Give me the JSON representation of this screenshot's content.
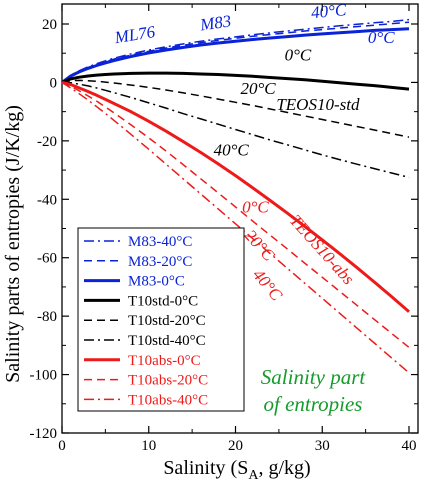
{
  "chart_data": {
    "type": "line",
    "title": "",
    "xlabel_main": "Salinity (S",
    "xlabel_sub": "A",
    "xlabel_tail": ", g/kg)",
    "ylabel": "Salinity parts of entropies (J/K/kg)",
    "xlim": [
      0,
      40
    ],
    "ylim": [
      -120,
      25
    ],
    "xticks": [
      0,
      10,
      20,
      30,
      40
    ],
    "yticks": [
      -120,
      -100,
      -80,
      -60,
      -40,
      -20,
      0,
      20
    ],
    "grid": false,
    "legend_position": "bottom-left",
    "colors": {
      "blue": "#0a22d8",
      "black": "#000000",
      "red": "#ee1a1a",
      "green": "#169a2c"
    },
    "x": [
      0,
      1,
      2,
      3,
      4,
      5,
      6,
      8,
      10,
      12,
      14,
      16,
      18,
      20,
      22,
      24,
      26,
      28,
      30,
      32,
      34,
      36,
      38,
      40
    ],
    "series": [
      {
        "name": "M83-40°C",
        "color": "#0a22d8",
        "dash": "dashdot",
        "width": 1.5,
        "values": [
          0,
          2.5,
          4,
          5.3,
          6.4,
          7.4,
          8.3,
          9.8,
          11.1,
          12.2,
          13.2,
          14.1,
          14.9,
          15.6,
          16.3,
          17,
          17.6,
          18.2,
          18.8,
          19.4,
          19.9,
          20.4,
          20.9,
          21.5
        ]
      },
      {
        "name": "M83-20°C",
        "color": "#0a22d8",
        "dash": "dashed",
        "width": 1.5,
        "values": [
          0,
          2.4,
          3.9,
          5.1,
          6.2,
          7.1,
          8,
          9.4,
          10.7,
          11.8,
          12.7,
          13.6,
          14.4,
          15.1,
          15.8,
          16.4,
          17,
          17.6,
          18.1,
          18.6,
          19.1,
          19.6,
          20.1,
          20.6
        ]
      },
      {
        "name": "M83-0°C",
        "color": "#0a22d8",
        "dash": "solid",
        "width": 3,
        "values": [
          0,
          2.2,
          3.6,
          4.8,
          5.8,
          6.7,
          7.5,
          8.9,
          10.1,
          11.1,
          12,
          12.8,
          13.5,
          14.1,
          14.7,
          15.2,
          15.7,
          16.2,
          16.6,
          17,
          17.4,
          17.8,
          18.1,
          18.4
        ]
      },
      {
        "name": "T10std-0°C",
        "color": "#000000",
        "dash": "solid",
        "width": 3,
        "values": [
          0,
          1.2,
          1.8,
          2.2,
          2.5,
          2.7,
          2.9,
          3.1,
          3.2,
          3.2,
          3.1,
          2.9,
          2.7,
          2.4,
          2.1,
          1.7,
          1.3,
          0.9,
          0.4,
          -0.1,
          -0.6,
          -1.1,
          -1.7,
          -2.3
        ]
      },
      {
        "name": "T10std-20°C",
        "color": "#000000",
        "dash": "dashed",
        "width": 1.5,
        "values": [
          0,
          0.6,
          0.7,
          0.6,
          0.4,
          0.1,
          -0.2,
          -0.9,
          -1.7,
          -2.6,
          -3.6,
          -4.6,
          -5.7,
          -6.8,
          -7.9,
          -9.1,
          -10.3,
          -11.5,
          -12.7,
          -13.9,
          -15.1,
          -16.3,
          -17.5,
          -18.7
        ]
      },
      {
        "name": "T10std-40°C",
        "color": "#000000",
        "dash": "dashdot",
        "width": 1.5,
        "values": [
          0,
          -0.1,
          -0.6,
          -1.2,
          -1.9,
          -2.7,
          -3.5,
          -5.2,
          -7,
          -8.8,
          -10.7,
          -12.5,
          -14.3,
          -16.1,
          -17.9,
          -19.7,
          -21.4,
          -23.1,
          -24.8,
          -26.4,
          -28,
          -29.5,
          -31,
          -32.5
        ]
      },
      {
        "name": "T10abs-0°C",
        "color": "#ee1a1a",
        "dash": "solid",
        "width": 3,
        "values": [
          0,
          -0.7,
          -1.9,
          -3.1,
          -4.4,
          -5.8,
          -7.2,
          -10.1,
          -13.3,
          -16.7,
          -20.3,
          -24,
          -27.9,
          -31.9,
          -36.1,
          -40.4,
          -44.8,
          -49.3,
          -53.9,
          -58.6,
          -63.4,
          -68.3,
          -73.3,
          -78.5
        ]
      },
      {
        "name": "T10abs-20°C",
        "color": "#ee1a1a",
        "dash": "dashed",
        "width": 1.5,
        "values": [
          0,
          -1.3,
          -2.9,
          -4.6,
          -6.4,
          -8.4,
          -10.4,
          -14.6,
          -19,
          -23.5,
          -28.2,
          -33,
          -37.8,
          -42.6,
          -47.5,
          -52.3,
          -57.1,
          -61.9,
          -66.7,
          -71.5,
          -76.3,
          -81.1,
          -85.9,
          -90.7
        ]
      },
      {
        "name": "T10abs-40°C",
        "color": "#ee1a1a",
        "dash": "dashdot",
        "width": 1.5,
        "values": [
          0,
          -1.9,
          -3.9,
          -6,
          -8.3,
          -10.6,
          -13,
          -17.9,
          -22.9,
          -28,
          -33.1,
          -38.2,
          -43.3,
          -48.4,
          -53.5,
          -58.6,
          -63.7,
          -68.8,
          -73.9,
          -79,
          -84.1,
          -89.2,
          -94.3,
          -99.4
        ]
      }
    ],
    "annotations": [
      {
        "text": "ML76",
        "x": 8.5,
        "y": 14.5,
        "angle": -9,
        "color": "#0a22d8"
      },
      {
        "text": "M83",
        "x": 17.8,
        "y": 18.5,
        "angle": -8,
        "color": "#0a22d8"
      },
      {
        "text": "40°C",
        "x": 30.8,
        "y": 22.5,
        "angle": -5,
        "color": "#0a22d8"
      },
      {
        "text": "0°C",
        "x": 36.8,
        "y": 13.5,
        "angle": 0,
        "color": "#0a22d8"
      },
      {
        "text": "0°C",
        "x": 27.2,
        "y": 7.5,
        "angle": 0,
        "color": "#000000"
      },
      {
        "text": "20°C",
        "x": 22.6,
        "y": -4,
        "angle": 0,
        "color": "#000000"
      },
      {
        "text": "TEOS10-std",
        "x": 29.5,
        "y": -9.5,
        "angle": 0,
        "color": "#000000"
      },
      {
        "text": "40°C",
        "x": 19.5,
        "y": -25,
        "angle": 0,
        "color": "#000000"
      },
      {
        "text": "0°C",
        "x": 22.3,
        "y": -44.5,
        "angle": 0,
        "color": "#ee1a1a"
      },
      {
        "text": "20°C",
        "x": 22.3,
        "y": -57,
        "angle": 48,
        "color": "#ee1a1a"
      },
      {
        "text": "TEOS10-abs",
        "x": 29.5,
        "y": -58.5,
        "angle": 48,
        "color": "#ee1a1a"
      },
      {
        "text": "40°C",
        "x": 23.2,
        "y": -70.5,
        "angle": 50,
        "color": "#ee1a1a"
      }
    ],
    "inset_text": {
      "lines": [
        "Salinity part",
        "of entropies"
      ],
      "color": "#169a2c"
    }
  }
}
